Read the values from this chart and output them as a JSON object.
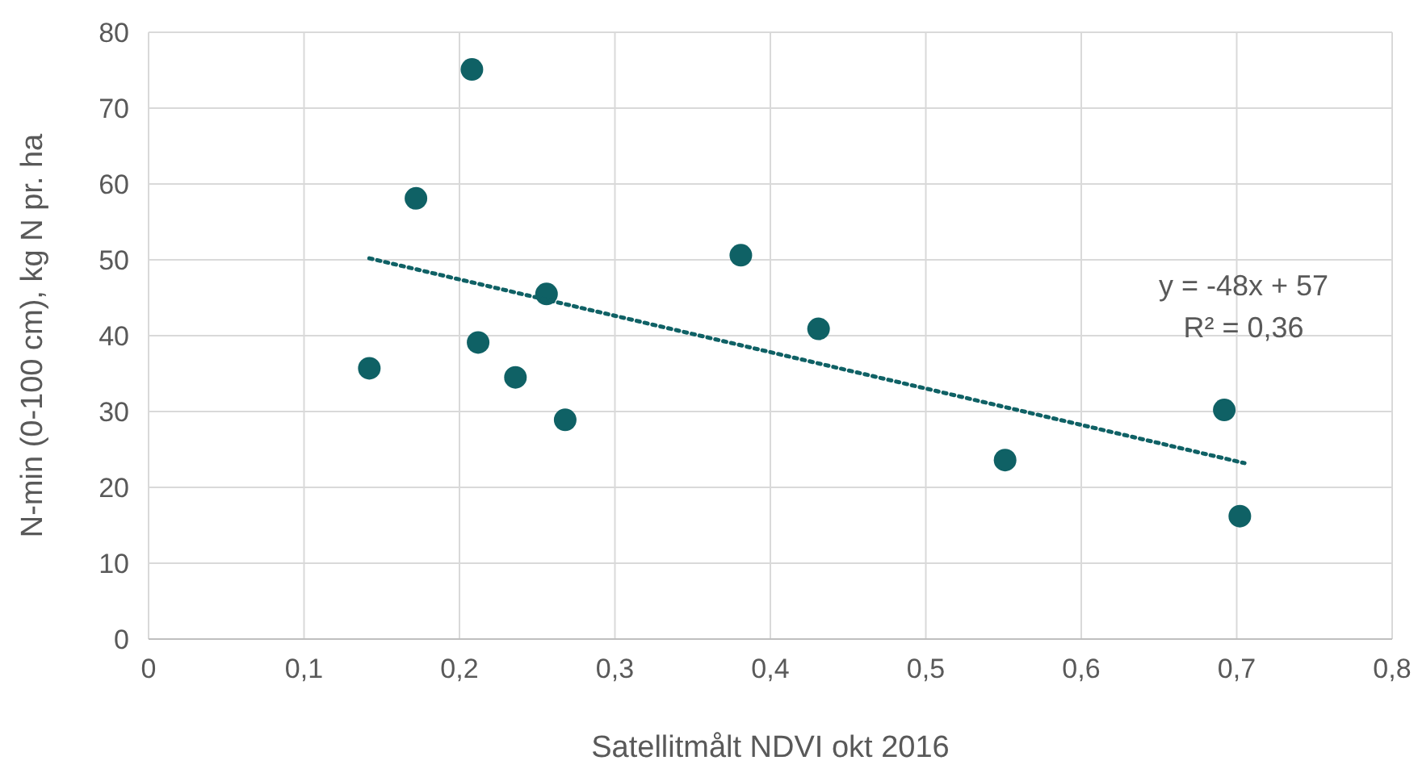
{
  "chart_data": {
    "type": "scatter",
    "xlabel": "Satellitmålt NDVI okt 2016",
    "ylabel": "N-min (0-100 cm), kg N pr. ha",
    "xlim": [
      0,
      0.8
    ],
    "ylim": [
      0,
      80
    ],
    "xticks": [
      0,
      {
        "value": 0.1,
        "label": "0,1"
      },
      {
        "value": 0.2,
        "label": "0,2"
      },
      {
        "value": 0.3,
        "label": "0,3"
      },
      {
        "value": 0.4,
        "label": "0,4"
      },
      {
        "value": 0.5,
        "label": "0,5"
      },
      {
        "value": 0.6,
        "label": "0,6"
      },
      {
        "value": 0.7,
        "label": "0,7"
      },
      {
        "value": 0.8,
        "label": "0,8"
      }
    ],
    "yticks": [
      0,
      10,
      20,
      30,
      40,
      50,
      60,
      70,
      80
    ],
    "grid": true,
    "series": [
      {
        "marker": "circle",
        "color": "#0f6165",
        "x": [
          0.142,
          0.172,
          0.208,
          0.212,
          0.236,
          0.256,
          0.268,
          0.381,
          0.431,
          0.551,
          0.692,
          0.702
        ],
        "values": [
          35.7,
          58.1,
          75.1,
          39.1,
          34.5,
          45.5,
          28.9,
          50.6,
          40.9,
          23.6,
          30.2,
          16.2
        ]
      },
      {
        "type": "line",
        "color": "#0f6165",
        "line_style": "dotted",
        "x": [
          0.142,
          0.705
        ],
        "values": [
          50.2,
          23.2
        ]
      }
    ],
    "annotations": [
      "y = -48x + 57",
      "R² = 0,36"
    ]
  }
}
